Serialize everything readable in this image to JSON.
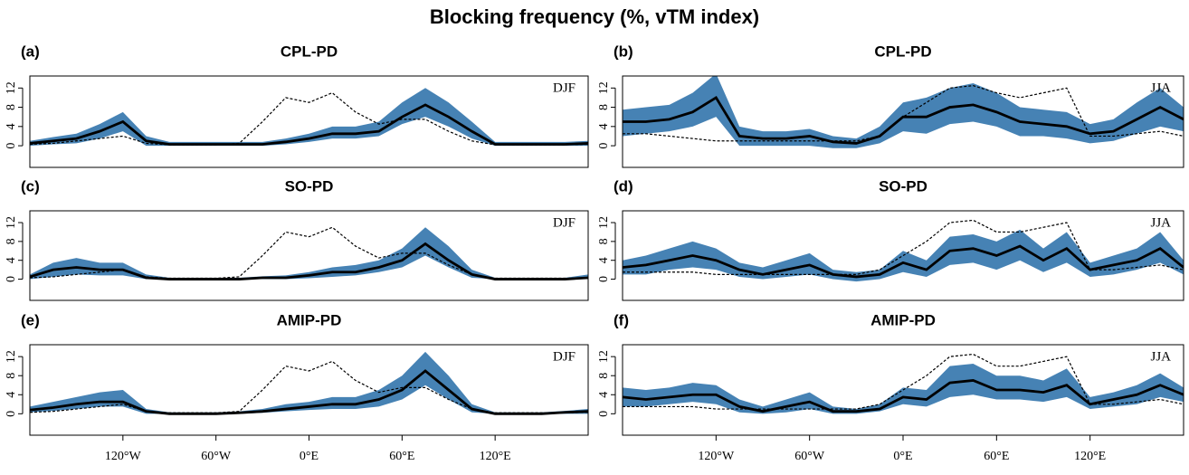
{
  "title": "Blocking frequency (%, vTM index)",
  "chart_data": [
    {
      "type": "line",
      "label": "(a)",
      "title": "CPL-PD",
      "season": "DJF",
      "x": [
        -180,
        -165,
        -150,
        -135,
        -120,
        -105,
        -90,
        -75,
        -60,
        -45,
        -30,
        -15,
        0,
        15,
        30,
        45,
        60,
        75,
        90,
        105,
        120,
        135,
        150,
        165,
        180
      ],
      "xlim": [
        -180,
        180
      ],
      "ylim": [
        -4.5,
        14.5
      ],
      "yticks": [
        0,
        4,
        8,
        12
      ],
      "band": {
        "color": "#4682b4",
        "lower": [
          0,
          0.3,
          0.5,
          1.5,
          3,
          0,
          0,
          0,
          0,
          0,
          0,
          0.3,
          0.8,
          1.5,
          1.5,
          2,
          4.5,
          6,
          4,
          1.5,
          0,
          0,
          0,
          0,
          0
        ],
        "upper": [
          1,
          1.8,
          2.5,
          4.5,
          7,
          2,
          0.8,
          0.8,
          0.8,
          0.8,
          0.8,
          1.5,
          2.5,
          4,
          4,
          5,
          9,
          12,
          9,
          5,
          0.8,
          0.8,
          0.8,
          0.8,
          1
        ]
      },
      "series": [
        {
          "color": "#000000",
          "style": "solid",
          "values": [
            0.5,
            1,
            1.5,
            3,
            5,
            1,
            0.3,
            0.3,
            0.3,
            0.3,
            0.3,
            0.8,
            1.5,
            2.5,
            2.5,
            3,
            6,
            8.5,
            6,
            3,
            0.3,
            0.3,
            0.3,
            0.3,
            0.5
          ]
        },
        {
          "color": "#000000",
          "style": "dotted",
          "values": [
            0.3,
            0.5,
            1,
            1.5,
            2,
            0.5,
            0.2,
            0.2,
            0.2,
            0.5,
            5,
            10,
            9,
            11,
            7,
            4.5,
            5.5,
            5.5,
            3,
            1,
            0.2,
            0.2,
            0.2,
            0.2,
            0.3
          ]
        }
      ]
    },
    {
      "type": "line",
      "label": "(b)",
      "title": "CPL-PD",
      "season": "JJA",
      "x": [
        -180,
        -165,
        -150,
        -135,
        -120,
        -105,
        -90,
        -75,
        -60,
        -45,
        -30,
        -15,
        0,
        15,
        30,
        45,
        60,
        75,
        90,
        105,
        120,
        135,
        150,
        165,
        180
      ],
      "xlim": [
        -180,
        180
      ],
      "ylim": [
        -4.5,
        14.5
      ],
      "yticks": [
        0,
        4,
        8,
        12
      ],
      "band": {
        "color": "#4682b4",
        "lower": [
          2,
          2.5,
          3,
          4,
          6,
          0,
          0,
          0,
          0,
          -0.5,
          -0.5,
          0.5,
          3,
          2.5,
          4.5,
          5,
          4,
          2,
          2,
          1.5,
          0.5,
          1,
          2.5,
          4,
          3
        ],
        "upper": [
          7.5,
          8,
          8.5,
          11,
          15,
          4,
          3,
          3,
          3.5,
          2,
          1.5,
          4,
          9,
          10,
          12,
          13,
          11,
          8,
          7.5,
          7,
          4.5,
          5.5,
          9,
          12,
          8
        ]
      },
      "series": [
        {
          "color": "#000000",
          "style": "solid",
          "values": [
            5,
            5,
            5.5,
            7,
            10,
            2,
            1.5,
            1.5,
            2,
            0.8,
            0.5,
            2,
            6,
            6,
            8,
            8.5,
            7,
            5,
            4.5,
            4,
            2.5,
            3,
            5.5,
            8,
            5.5
          ]
        },
        {
          "color": "#000000",
          "style": "dotted",
          "values": [
            2.5,
            2.5,
            2,
            1.5,
            1,
            1,
            1,
            1,
            1,
            1,
            1,
            2,
            6,
            9,
            12,
            12.5,
            11,
            10,
            11,
            12,
            2,
            2,
            2.5,
            3,
            2
          ]
        }
      ]
    },
    {
      "type": "line",
      "label": "(c)",
      "title": "SO-PD",
      "season": "DJF",
      "x": [
        -180,
        -165,
        -150,
        -135,
        -120,
        -105,
        -90,
        -75,
        -60,
        -45,
        -30,
        -15,
        0,
        15,
        30,
        45,
        60,
        75,
        90,
        105,
        120,
        135,
        150,
        165,
        180
      ],
      "xlim": [
        -180,
        180
      ],
      "ylim": [
        -4.5,
        14.5
      ],
      "yticks": [
        0,
        4,
        8,
        12
      ],
      "band": {
        "color": "#4682b4",
        "lower": [
          0,
          0.5,
          1,
          0.8,
          0.8,
          0,
          0,
          0,
          0,
          0,
          0,
          0,
          0.2,
          0.5,
          0.8,
          1.5,
          2.5,
          5,
          2.5,
          0.3,
          0,
          0,
          0,
          0,
          0
        ],
        "upper": [
          1,
          3.5,
          4.5,
          3.5,
          3.5,
          1,
          0.3,
          0.3,
          0.3,
          0.3,
          0.6,
          0.8,
          1.5,
          2.5,
          3,
          4,
          6.5,
          11,
          7,
          2,
          0.3,
          0.3,
          0.3,
          0.3,
          1
        ]
      },
      "series": [
        {
          "color": "#000000",
          "style": "solid",
          "values": [
            0.5,
            2,
            2.5,
            2,
            2,
            0.3,
            0,
            0,
            0,
            0,
            0.3,
            0.3,
            0.8,
            1.5,
            1.5,
            2.5,
            4,
            7.5,
            4,
            1,
            0,
            0,
            0,
            0,
            0.3
          ]
        },
        {
          "color": "#000000",
          "style": "dotted",
          "values": [
            0.3,
            0.5,
            1,
            1.5,
            2,
            0.5,
            0.2,
            0.2,
            0.2,
            0.5,
            5,
            10,
            9,
            11,
            7,
            4.5,
            5.5,
            5.5,
            3,
            1,
            0.2,
            0.2,
            0.2,
            0.2,
            0.3
          ]
        }
      ]
    },
    {
      "type": "line",
      "label": "(d)",
      "title": "SO-PD",
      "season": "JJA",
      "x": [
        -180,
        -165,
        -150,
        -135,
        -120,
        -105,
        -90,
        -75,
        -60,
        -45,
        -30,
        -15,
        0,
        15,
        30,
        45,
        60,
        75,
        90,
        105,
        120,
        135,
        150,
        165,
        180
      ],
      "xlim": [
        -180,
        180
      ],
      "ylim": [
        -4.5,
        14.5
      ],
      "yticks": [
        0,
        4,
        8,
        12
      ],
      "band": {
        "color": "#4682b4",
        "lower": [
          1,
          1,
          2,
          2.5,
          2,
          0.5,
          0,
          0.5,
          1,
          0,
          -0.5,
          0,
          1.5,
          0.5,
          3,
          3.5,
          2,
          4,
          1.5,
          3.5,
          0.5,
          1,
          2,
          3.5,
          1
        ],
        "upper": [
          4,
          5,
          6.5,
          8,
          6.5,
          3.5,
          2.5,
          4,
          5.5,
          2,
          1.5,
          2,
          6,
          4,
          9,
          9.5,
          8,
          10.5,
          6.5,
          10,
          3.5,
          5,
          6.5,
          10,
          4
        ]
      },
      "series": [
        {
          "color": "#000000",
          "style": "solid",
          "values": [
            2.5,
            3,
            4,
            5,
            4,
            2,
            1,
            2,
            3,
            1,
            0.5,
            1,
            3.5,
            2,
            6,
            6.5,
            5,
            7,
            4,
            6.5,
            2,
            3,
            4,
            6.5,
            2.5
          ]
        },
        {
          "color": "#000000",
          "style": "dotted",
          "values": [
            1.5,
            1.5,
            1.5,
            1.5,
            1,
            1,
            1,
            1,
            1,
            1,
            1,
            2,
            5,
            8,
            12,
            12.5,
            10,
            10,
            11,
            12,
            2,
            2,
            2.5,
            3,
            2
          ]
        }
      ]
    },
    {
      "type": "line",
      "label": "(e)",
      "title": "AMIP-PD",
      "season": "DJF",
      "x": [
        -180,
        -165,
        -150,
        -135,
        -120,
        -105,
        -90,
        -75,
        -60,
        -45,
        -30,
        -15,
        0,
        15,
        30,
        45,
        60,
        75,
        90,
        105,
        120,
        135,
        150,
        165,
        180
      ],
      "xlim": [
        -180,
        180
      ],
      "ylim": [
        -4.5,
        14.5
      ],
      "yticks": [
        0,
        4,
        8,
        12
      ],
      "xticks": [
        {
          "value": -120,
          "label": "120°W"
        },
        {
          "value": -60,
          "label": "60°W"
        },
        {
          "value": 0,
          "label": "0°E"
        },
        {
          "value": 60,
          "label": "60°E"
        },
        {
          "value": 120,
          "label": "120°E"
        }
      ],
      "band": {
        "color": "#4682b4",
        "lower": [
          0.3,
          0.6,
          1,
          1.5,
          1.5,
          0,
          0,
          0,
          0,
          0,
          0.2,
          0.5,
          0.8,
          1,
          1,
          1.5,
          3,
          6,
          3,
          0.3,
          0,
          0,
          0,
          0,
          0
        ],
        "upper": [
          1.5,
          2.5,
          3.5,
          4.5,
          5,
          1,
          0.3,
          0.3,
          0.3,
          0.5,
          1,
          2,
          2.5,
          3.5,
          3.5,
          5,
          8,
          13,
          8,
          2,
          0.3,
          0.3,
          0.3,
          0.6,
          1
        ]
      },
      "series": [
        {
          "color": "#000000",
          "style": "solid",
          "values": [
            0.8,
            1.3,
            2,
            2.5,
            2.5,
            0.5,
            0,
            0,
            0,
            0.2,
            0.5,
            1,
            1.5,
            2,
            2,
            3,
            5,
            9,
            5,
            1,
            0,
            0,
            0,
            0.3,
            0.5
          ]
        },
        {
          "color": "#000000",
          "style": "dotted",
          "values": [
            0.3,
            0.5,
            1,
            1.5,
            2,
            0.5,
            0.2,
            0.2,
            0.2,
            0.5,
            5,
            10,
            9,
            11,
            7,
            4.5,
            5.5,
            5.5,
            3,
            1,
            0.2,
            0.2,
            0.2,
            0.2,
            0.3
          ]
        }
      ]
    },
    {
      "type": "line",
      "label": "(f)",
      "title": "AMIP-PD",
      "season": "JJA",
      "x": [
        -180,
        -165,
        -150,
        -135,
        -120,
        -105,
        -90,
        -75,
        -60,
        -45,
        -30,
        -15,
        0,
        15,
        30,
        45,
        60,
        75,
        90,
        105,
        120,
        135,
        150,
        165,
        180
      ],
      "xlim": [
        -180,
        180
      ],
      "ylim": [
        -4.5,
        14.5
      ],
      "yticks": [
        0,
        4,
        8,
        12
      ],
      "xticks": [
        {
          "value": -120,
          "label": "120°W"
        },
        {
          "value": -60,
          "label": "60°W"
        },
        {
          "value": 0,
          "label": "0°E"
        },
        {
          "value": 60,
          "label": "60°E"
        },
        {
          "value": 120,
          "label": "120°E"
        }
      ],
      "band": {
        "color": "#4682b4",
        "lower": [
          1.5,
          1.5,
          2,
          2.5,
          2,
          0.3,
          0,
          0.3,
          1,
          0,
          0,
          0.5,
          2,
          1.5,
          3.5,
          4,
          3,
          3,
          2.5,
          3.5,
          1,
          1.5,
          2,
          3.5,
          2.5
        ],
        "upper": [
          5.5,
          5,
          5.5,
          6.5,
          6,
          3,
          1.5,
          3,
          4.5,
          1.5,
          1,
          2,
          5.5,
          5,
          10,
          10.5,
          8,
          8,
          7,
          9.5,
          3.5,
          4.5,
          6,
          8.5,
          5.5
        ]
      },
      "series": [
        {
          "color": "#000000",
          "style": "solid",
          "values": [
            3.5,
            3,
            3.5,
            4,
            4,
            1.5,
            0.5,
            1.5,
            2.5,
            0.5,
            0.5,
            1,
            3.5,
            3,
            6.5,
            7,
            5,
            5,
            4.5,
            6,
            2,
            3,
            4,
            6,
            4
          ]
        },
        {
          "color": "#000000",
          "style": "dotted",
          "values": [
            1.5,
            1.5,
            1.5,
            1.5,
            1,
            1,
            1,
            1,
            1,
            1,
            1,
            2,
            5,
            8,
            12,
            12.5,
            10,
            10,
            11,
            12,
            2,
            2,
            2.5,
            3,
            2
          ]
        }
      ]
    }
  ]
}
